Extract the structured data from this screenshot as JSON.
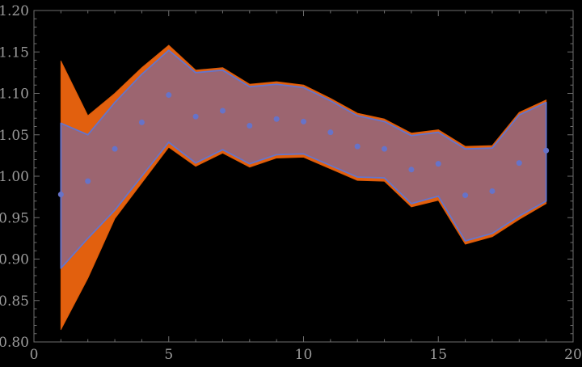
{
  "chart_data": {
    "type": "scatter",
    "title": "",
    "xlabel": "",
    "ylabel": "",
    "xlim": [
      0,
      20
    ],
    "ylim": [
      0.8,
      1.2
    ],
    "grid": false,
    "legend": null,
    "frame": true,
    "x": [
      1,
      2,
      3,
      4,
      5,
      6,
      7,
      8,
      9,
      10,
      11,
      12,
      13,
      14,
      15,
      16,
      17,
      18,
      19
    ],
    "points": [
      0.978,
      0.994,
      1.033,
      1.065,
      1.098,
      1.072,
      1.079,
      1.061,
      1.069,
      1.066,
      1.053,
      1.036,
      1.033,
      1.008,
      1.015,
      0.977,
      0.982,
      1.016,
      1.031
    ],
    "bands": [
      {
        "name": "outer-band",
        "fill": "#E2600E",
        "fill_opacity": 1,
        "edge": "#DD5A06",
        "edge_width": 1,
        "top": [
          1.139,
          1.073,
          1.1,
          1.131,
          1.158,
          1.128,
          1.131,
          1.111,
          1.114,
          1.11,
          1.094,
          1.076,
          1.069,
          1.052,
          1.056,
          1.036,
          1.037,
          1.077,
          1.092
        ],
        "bottom": [
          0.815,
          0.877,
          0.949,
          0.992,
          1.035,
          1.012,
          1.028,
          1.011,
          1.022,
          1.023,
          1.009,
          0.995,
          0.994,
          0.963,
          0.971,
          0.918,
          0.927,
          0.948,
          0.967
        ]
      },
      {
        "name": "inner-band",
        "fill": "#566AD2",
        "fill_opacity": 0.5,
        "edge": "#6474CC",
        "edge_width": 1.8,
        "top": [
          1.064,
          1.05,
          1.089,
          1.123,
          1.152,
          1.125,
          1.128,
          1.108,
          1.111,
          1.107,
          1.091,
          1.073,
          1.066,
          1.049,
          1.053,
          1.033,
          1.034,
          1.074,
          1.089
        ],
        "bottom": [
          0.889,
          0.925,
          0.959,
          1.0,
          1.041,
          1.016,
          1.032,
          1.015,
          1.026,
          1.027,
          1.013,
          0.999,
          0.998,
          0.967,
          0.976,
          0.922,
          0.931,
          0.952,
          0.97
        ]
      }
    ],
    "point_style": {
      "color": "#6673C9",
      "radius": 3.5
    },
    "x_ticks": {
      "major": [
        {
          "v": 0,
          "label": "0"
        },
        {
          "v": 5,
          "label": "5"
        },
        {
          "v": 10,
          "label": "10"
        },
        {
          "v": 15,
          "label": "15"
        },
        {
          "v": 20,
          "label": "20"
        }
      ],
      "minor_step": 1
    },
    "y_ticks": {
      "major": [
        {
          "v": 0.8,
          "label": "0.80"
        },
        {
          "v": 0.85,
          "label": "0.85"
        },
        {
          "v": 0.9,
          "label": "0.90"
        },
        {
          "v": 0.95,
          "label": "0.95"
        },
        {
          "v": 1.0,
          "label": "1.00"
        },
        {
          "v": 1.05,
          "label": "1.05"
        },
        {
          "v": 1.1,
          "label": "1.10"
        },
        {
          "v": 1.15,
          "label": "1.15"
        },
        {
          "v": 1.2,
          "label": "1.20"
        }
      ],
      "minor_step": 0.01
    },
    "colors": {
      "background": "#000000",
      "frame": "#6E6E6E",
      "tick": "#6E6E6E",
      "tick_label": "#9B9B9B"
    }
  }
}
